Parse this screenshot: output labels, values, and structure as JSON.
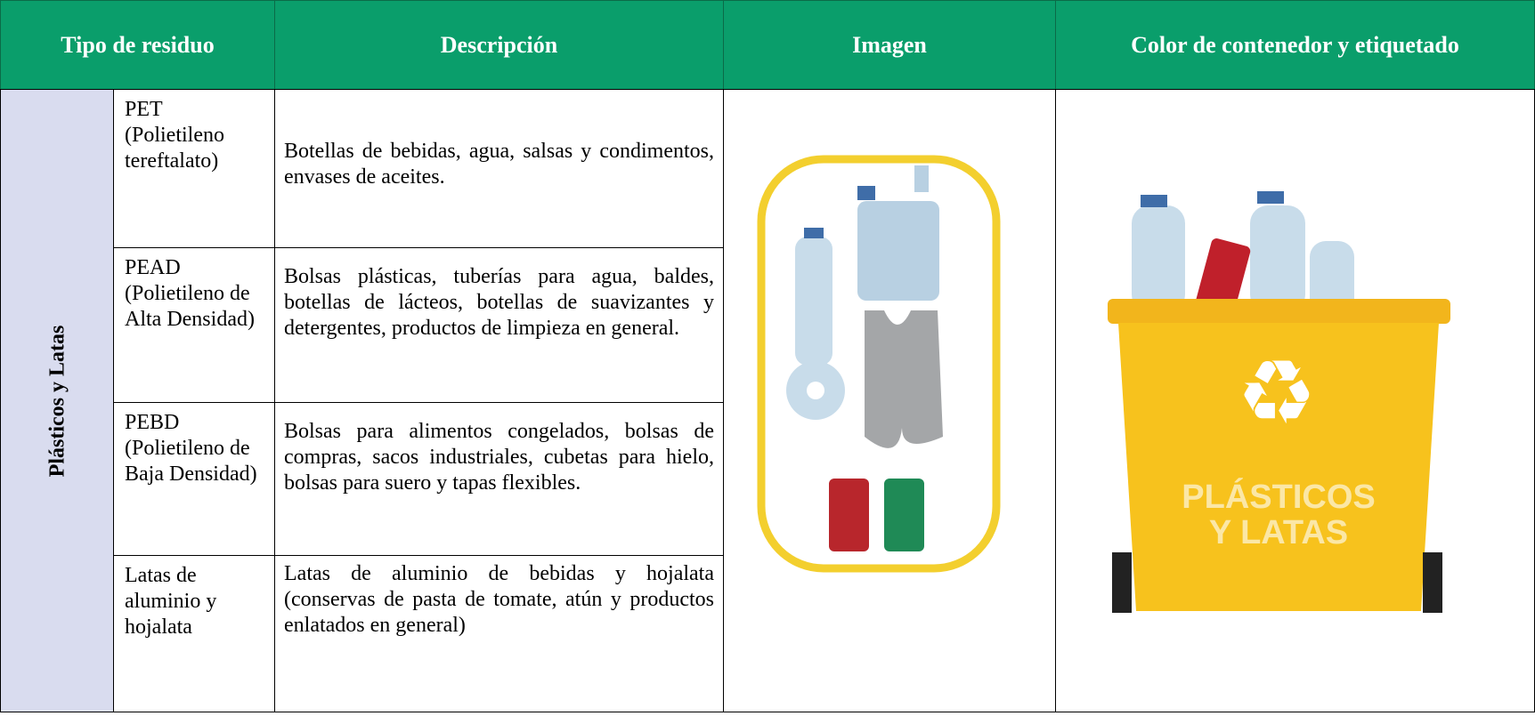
{
  "header": {
    "cells": [
      "Tipo de residuo",
      "Descripción",
      "Imagen",
      "Color de contenedor y etiquetado"
    ]
  },
  "group": "Plásticos y Latas",
  "rows": [
    {
      "type": "PET (Polietileno tereftalato)",
      "description": "Botellas de bebidas, agua, salsas y condimentos, envases de aceites."
    },
    {
      "type": "PEAD (Polietileno de Alta Densidad)",
      "description": "Bolsas plásticas, tuberías para agua, baldes, botellas de lácteos, botellas de suavizantes y detergentes, productos de limpieza en general."
    },
    {
      "type": "PEBD (Polietileno de Baja Densidad)",
      "description": "Bolsas para alimentos congelados, bolsas de compras, sacos industriales, cubetas para hielo, bolsas para suero y tapas flexibles."
    },
    {
      "type": "Latas de aluminio y hojalata",
      "description": "Latas de aluminio de bebidas y hojalata (conservas de pasta de tomate, atún y productos enlatados en general)"
    }
  ],
  "container_label": [
    "PLÁSTICOS",
    "Y LATAS"
  ]
}
